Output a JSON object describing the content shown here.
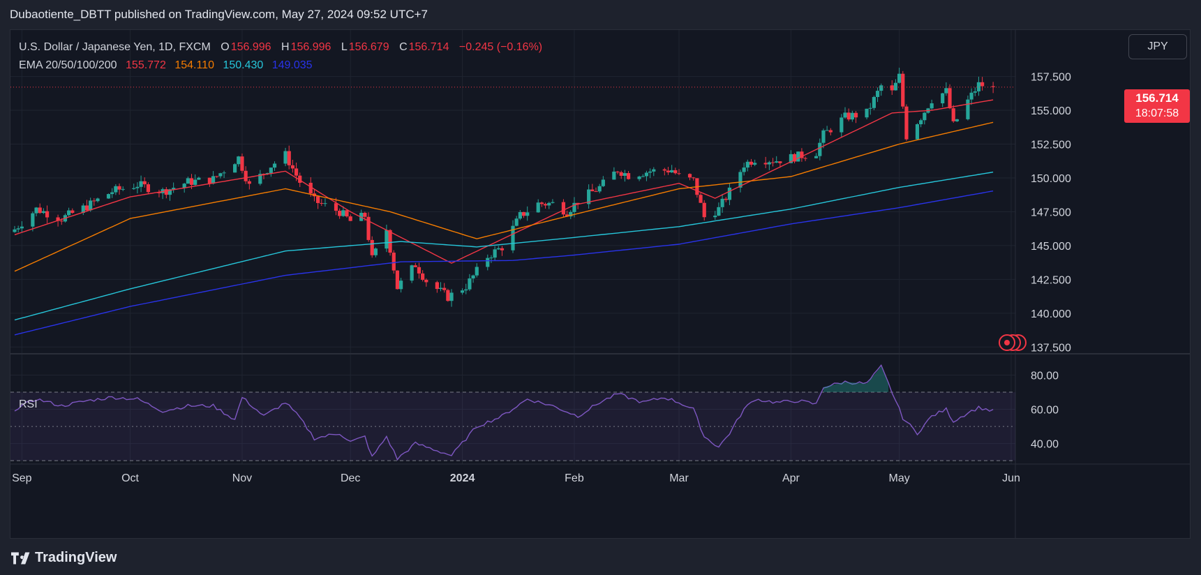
{
  "header": {
    "publisher": "Dubaotiente_DBTT published on TradingView.com, May 27, 2024 09:52 UTC+7"
  },
  "legend": {
    "symbol": "U.S. Dollar / Japanese Yen, 1D, FXCM",
    "open_label": "O",
    "open": "156.996",
    "high_label": "H",
    "high": "156.996",
    "low_label": "L",
    "low": "156.679",
    "close_label": "C",
    "close": "156.714",
    "change": "−0.245 (−0.16%)",
    "ema_label": "EMA 20/50/100/200",
    "ema20": "155.772",
    "ema50": "154.110",
    "ema100": "150.430",
    "ema200": "149.035"
  },
  "currency_button": "JPY",
  "price_tag": {
    "price": "156.714",
    "countdown": "18:07:58"
  },
  "rsi_label": "RSI",
  "footer": {
    "brand": "TradingView"
  },
  "colors": {
    "up": "#26a69a",
    "down": "#f23645",
    "ema20": "#f23645",
    "ema50": "#f57c00",
    "ema100": "#26c6da",
    "ema200": "#2933ea",
    "rsi": "#7e57c2",
    "bg": "#131722"
  },
  "chart_data": [
    {
      "type": "candlestick",
      "y_ticks": [
        "157.500",
        "155.000",
        "152.500",
        "150.000",
        "147.500",
        "145.000",
        "142.500",
        "140.000",
        "137.500"
      ],
      "ylim": [
        137.0,
        159.8
      ],
      "x_ticks": [
        {
          "label": "Sep",
          "date": "2023-09-01"
        },
        {
          "label": "Oct",
          "date": "2023-10-01"
        },
        {
          "label": "Nov",
          "date": "2023-11-01"
        },
        {
          "label": "Dec",
          "date": "2023-12-01"
        },
        {
          "label": "2024",
          "date": "2024-01-01"
        },
        {
          "label": "Feb",
          "date": "2024-02-01"
        },
        {
          "label": "Mar",
          "date": "2024-03-01"
        },
        {
          "label": "Apr",
          "date": "2024-04-01"
        },
        {
          "label": "May",
          "date": "2024-05-01"
        },
        {
          "label": "Jun",
          "date": "2024-06-01"
        }
      ],
      "close_anchors": [
        [
          "2023-08-30",
          146.2
        ],
        [
          "2023-09-05",
          147.7
        ],
        [
          "2023-09-12",
          147.0
        ],
        [
          "2023-09-19",
          147.9
        ],
        [
          "2023-09-26",
          149.0
        ],
        [
          "2023-10-03",
          149.5
        ],
        [
          "2023-10-10",
          149.0
        ],
        [
          "2023-10-17",
          149.7
        ],
        [
          "2023-10-24",
          149.9
        ],
        [
          "2023-10-31",
          151.5
        ],
        [
          "2023-11-03",
          149.4
        ],
        [
          "2023-11-09",
          150.9
        ],
        [
          "2023-11-13",
          151.7
        ],
        [
          "2023-11-17",
          149.7
        ],
        [
          "2023-11-21",
          148.3
        ],
        [
          "2023-11-28",
          147.5
        ],
        [
          "2023-12-01",
          146.8
        ],
        [
          "2023-12-05",
          147.2
        ],
        [
          "2023-12-07",
          144.0
        ],
        [
          "2023-12-11",
          146.2
        ],
        [
          "2023-12-14",
          141.9
        ],
        [
          "2023-12-19",
          143.6
        ],
        [
          "2023-12-22",
          142.4
        ],
        [
          "2023-12-28",
          141.2
        ],
        [
          "2024-01-02",
          142.0
        ],
        [
          "2024-01-08",
          144.2
        ],
        [
          "2024-01-12",
          144.9
        ],
        [
          "2024-01-17",
          147.2
        ],
        [
          "2024-01-22",
          148.1
        ],
        [
          "2024-01-26",
          148.1
        ],
        [
          "2024-01-30",
          147.5
        ],
        [
          "2024-02-02",
          148.3
        ],
        [
          "2024-02-08",
          149.3
        ],
        [
          "2024-02-13",
          150.6
        ],
        [
          "2024-02-16",
          150.2
        ],
        [
          "2024-02-22",
          150.5
        ],
        [
          "2024-02-28",
          150.6
        ],
        [
          "2024-03-01",
          150.1
        ],
        [
          "2024-03-05",
          149.8
        ],
        [
          "2024-03-08",
          147.1
        ],
        [
          "2024-03-12",
          147.7
        ],
        [
          "2024-03-15",
          149.0
        ],
        [
          "2024-03-19",
          151.0
        ],
        [
          "2024-03-22",
          151.4
        ],
        [
          "2024-03-28",
          151.3
        ],
        [
          "2024-04-03",
          151.6
        ],
        [
          "2024-04-08",
          151.9
        ],
        [
          "2024-04-10",
          153.2
        ],
        [
          "2024-04-16",
          154.5
        ],
        [
          "2024-04-22",
          154.8
        ],
        [
          "2024-04-26",
          156.8
        ],
        [
          "2024-04-29",
          156.3
        ],
        [
          "2024-05-01",
          157.5
        ],
        [
          "2024-05-03",
          153.1
        ],
        [
          "2024-05-07",
          154.5
        ],
        [
          "2024-05-10",
          155.8
        ],
        [
          "2024-05-14",
          156.4
        ],
        [
          "2024-05-16",
          153.9
        ],
        [
          "2024-05-20",
          155.7
        ],
        [
          "2024-05-23",
          156.9
        ],
        [
          "2024-05-27",
          156.714
        ]
      ],
      "ema_endpoints": {
        "ema20": [
          [
            "2023-08-30",
            145.8
          ],
          [
            "2023-10-01",
            148.6
          ],
          [
            "2023-11-13",
            150.5
          ],
          [
            "2023-12-01",
            147.5
          ],
          [
            "2023-12-29",
            143.7
          ],
          [
            "2024-02-01",
            148.0
          ],
          [
            "2024-03-01",
            149.6
          ],
          [
            "2024-03-11",
            148.5
          ],
          [
            "2024-04-01",
            151.2
          ],
          [
            "2024-04-29",
            154.8
          ],
          [
            "2024-05-10",
            155.0
          ],
          [
            "2024-05-27",
            155.772
          ]
        ],
        "ema50": [
          [
            "2023-08-30",
            143.1
          ],
          [
            "2023-10-01",
            147.0
          ],
          [
            "2023-11-13",
            149.2
          ],
          [
            "2023-12-12",
            147.5
          ],
          [
            "2024-01-05",
            145.5
          ],
          [
            "2024-02-01",
            147.3
          ],
          [
            "2024-03-01",
            149.2
          ],
          [
            "2024-04-01",
            150.1
          ],
          [
            "2024-05-01",
            152.5
          ],
          [
            "2024-05-27",
            154.11
          ]
        ],
        "ema100": [
          [
            "2023-08-30",
            139.5
          ],
          [
            "2023-10-01",
            141.8
          ],
          [
            "2023-11-13",
            144.6
          ],
          [
            "2023-12-15",
            145.3
          ],
          [
            "2024-01-05",
            144.9
          ],
          [
            "2024-02-01",
            145.6
          ],
          [
            "2024-03-01",
            146.4
          ],
          [
            "2024-04-01",
            147.7
          ],
          [
            "2024-05-01",
            149.3
          ],
          [
            "2024-05-27",
            150.43
          ]
        ],
        "ema200": [
          [
            "2023-08-30",
            138.4
          ],
          [
            "2023-10-01",
            140.5
          ],
          [
            "2023-11-13",
            142.8
          ],
          [
            "2023-12-15",
            143.8
          ],
          [
            "2024-01-15",
            143.9
          ],
          [
            "2024-02-01",
            144.3
          ],
          [
            "2024-03-01",
            145.1
          ],
          [
            "2024-04-01",
            146.6
          ],
          [
            "2024-05-01",
            147.8
          ],
          [
            "2024-05-27",
            149.035
          ]
        ]
      }
    },
    {
      "type": "line",
      "title": "RSI",
      "y_ticks": [
        "80.00",
        "60.00",
        "40.00"
      ],
      "ylim": [
        28,
        90
      ],
      "bands": [
        70,
        50,
        30
      ],
      "anchors": [
        [
          "2023-08-30",
          60
        ],
        [
          "2023-09-05",
          66
        ],
        [
          "2023-09-12",
          62
        ],
        [
          "2023-09-19",
          65
        ],
        [
          "2023-09-26",
          67
        ],
        [
          "2023-10-03",
          66
        ],
        [
          "2023-10-10",
          59
        ],
        [
          "2023-10-17",
          62
        ],
        [
          "2023-10-24",
          62
        ],
        [
          "2023-10-30",
          54
        ],
        [
          "2023-11-01",
          67
        ],
        [
          "2023-11-07",
          56
        ],
        [
          "2023-11-13",
          64
        ],
        [
          "2023-11-17",
          55
        ],
        [
          "2023-11-21",
          43
        ],
        [
          "2023-11-28",
          46
        ],
        [
          "2023-12-01",
          41
        ],
        [
          "2023-12-05",
          44
        ],
        [
          "2023-12-07",
          32
        ],
        [
          "2023-12-11",
          44
        ],
        [
          "2023-12-14",
          31
        ],
        [
          "2023-12-19",
          40
        ],
        [
          "2023-12-22",
          38
        ],
        [
          "2023-12-29",
          33
        ],
        [
          "2024-01-05",
          50
        ],
        [
          "2024-01-12",
          56
        ],
        [
          "2024-01-19",
          66
        ],
        [
          "2024-01-26",
          62
        ],
        [
          "2024-02-02",
          56
        ],
        [
          "2024-02-08",
          64
        ],
        [
          "2024-02-13",
          69
        ],
        [
          "2024-02-20",
          64
        ],
        [
          "2024-02-26",
          67
        ],
        [
          "2024-03-01",
          64
        ],
        [
          "2024-03-05",
          60
        ],
        [
          "2024-03-08",
          44
        ],
        [
          "2024-03-12",
          38
        ],
        [
          "2024-03-15",
          46
        ],
        [
          "2024-03-19",
          60
        ],
        [
          "2024-03-22",
          66
        ],
        [
          "2024-03-28",
          64
        ],
        [
          "2024-04-03",
          65
        ],
        [
          "2024-04-08",
          63
        ],
        [
          "2024-04-10",
          73
        ],
        [
          "2024-04-16",
          76
        ],
        [
          "2024-04-22",
          75
        ],
        [
          "2024-04-26",
          85
        ],
        [
          "2024-04-29",
          70
        ],
        [
          "2024-05-02",
          55
        ],
        [
          "2024-05-06",
          46
        ],
        [
          "2024-05-10",
          56
        ],
        [
          "2024-05-14",
          60
        ],
        [
          "2024-05-16",
          53
        ],
        [
          "2024-05-20",
          58
        ],
        [
          "2024-05-23",
          61
        ],
        [
          "2024-05-27",
          59
        ]
      ]
    }
  ]
}
